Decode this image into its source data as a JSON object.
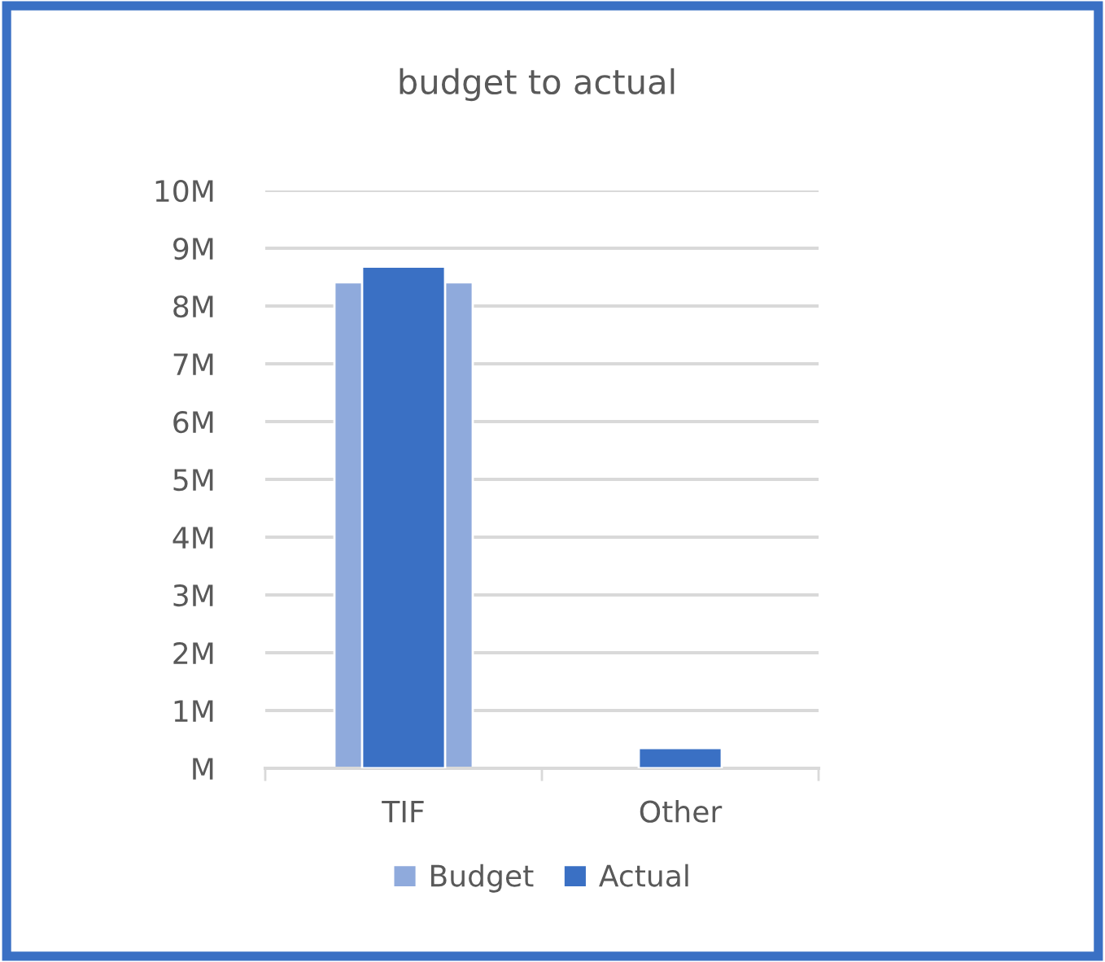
{
  "chart_data": {
    "type": "bar",
    "title": "budget to actual",
    "categories": [
      "TIF",
      "Other"
    ],
    "series": [
      {
        "name": "Budget",
        "color": "#8faadc",
        "values": [
          8.41,
          null
        ]
      },
      {
        "name": "Actual",
        "color": "#3a70c4",
        "values": [
          8.68,
          0.35
        ]
      }
    ],
    "ylim": [
      0,
      10
    ],
    "yticks": [
      {
        "value": 0,
        "label": "M"
      },
      {
        "value": 1,
        "label": "1M"
      },
      {
        "value": 2,
        "label": "2M"
      },
      {
        "value": 3,
        "label": "3M"
      },
      {
        "value": 4,
        "label": "4M"
      },
      {
        "value": 5,
        "label": "5M"
      },
      {
        "value": 6,
        "label": "6M"
      },
      {
        "value": 7,
        "label": "7M"
      },
      {
        "value": 8,
        "label": "8M"
      },
      {
        "value": 9,
        "label": "9M"
      },
      {
        "value": 10,
        "label": "10M"
      }
    ],
    "grid": "y",
    "legend": "bottom"
  }
}
